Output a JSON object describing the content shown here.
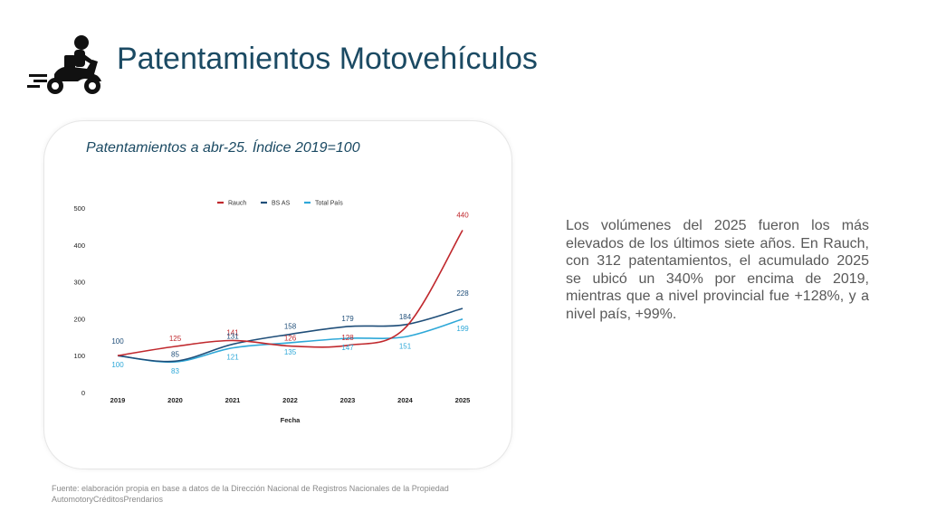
{
  "header": {
    "title": "Patentamientos Motovehículos",
    "icon": "motorcycle-rider-icon"
  },
  "card": {
    "title": "Patentamientos a abr-25. Índice 2019=100"
  },
  "description": "Los volúmenes del 2025 fueron los más elevados de los últimos siete años. En Rauch, con 312 patentamientos, el acumulado 2025 se ubicó un 340% por encima de 2019, mientras que a nivel provincial fue +128%, y a  nivel país, +99%.",
  "source": "Fuente: elaboración propia en base a datos de la Dirección Nacional de Registros Nacionales de la Propiedad AutomotoryCréditosPrendarios",
  "chart_data": {
    "type": "line",
    "title": "",
    "xlabel": "Fecha",
    "ylabel": "",
    "categories": [
      "2019",
      "2020",
      "2021",
      "2022",
      "2023",
      "2024",
      "2025"
    ],
    "ylim": [
      0,
      500
    ],
    "yticks": [
      "0",
      "100",
      "200",
      "300",
      "400",
      "500"
    ],
    "legend_position": "top-center",
    "series": [
      {
        "name": "Rauch",
        "color": "#c0282d",
        "values": [
          100,
          125,
          141,
          126,
          128,
          175,
          440
        ],
        "labels": [
          "",
          "125",
          "141",
          "126",
          "128",
          "",
          "440"
        ]
      },
      {
        "name": "BS AS",
        "color": "#1f4e79",
        "values": [
          100,
          85,
          131,
          158,
          179,
          184,
          228
        ],
        "labels": [
          "100",
          "85",
          "131",
          "158",
          "179",
          "184",
          "228"
        ]
      },
      {
        "name": "Total País",
        "color": "#2ea8d8",
        "values": [
          100,
          83,
          121,
          135,
          147,
          151,
          199
        ],
        "labels": [
          "100",
          "83",
          "121",
          "135",
          "147",
          "151",
          "199"
        ]
      }
    ]
  }
}
